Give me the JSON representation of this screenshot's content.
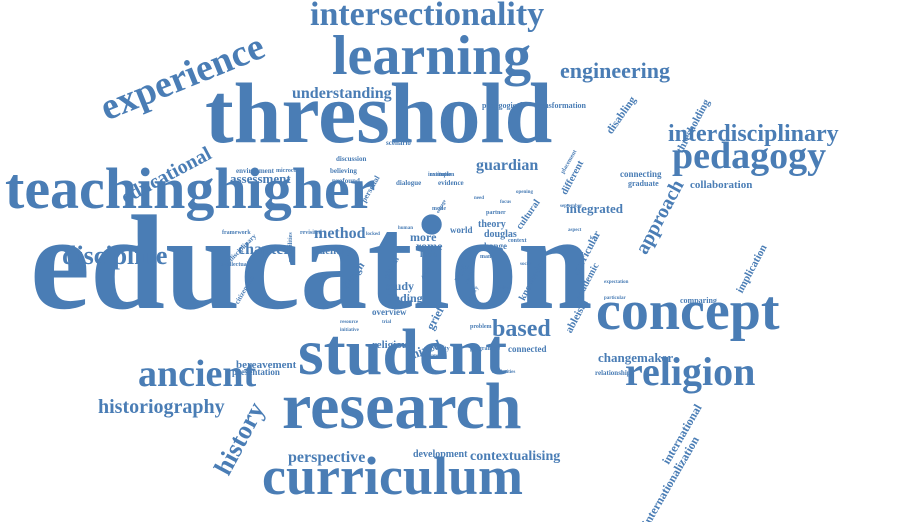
{
  "color": "#4a7db5",
  "words": [
    {
      "text": "education",
      "size": 135
    },
    {
      "text": "threshold",
      "size": 86
    },
    {
      "text": "student",
      "size": 66
    },
    {
      "text": "research",
      "size": 66
    },
    {
      "text": "teachinghigher",
      "size": 58
    },
    {
      "text": "concept",
      "size": 56
    },
    {
      "text": "learning",
      "size": 56
    },
    {
      "text": "curriculum",
      "size": 54
    },
    {
      "text": "religion",
      "size": 40
    },
    {
      "text": "pedagogy",
      "size": 38
    },
    {
      "text": "ancient",
      "size": 38
    },
    {
      "text": "experience",
      "size": 38
    },
    {
      "text": "intersectionality",
      "size": 34
    },
    {
      "text": "discipline",
      "size": 26
    },
    {
      "text": "interdisciplinary",
      "size": 24
    },
    {
      "text": "engineering",
      "size": 22
    },
    {
      "text": "historiography",
      "size": 20
    },
    {
      "text": "history",
      "size": 26
    },
    {
      "text": "based",
      "size": 24
    },
    {
      "text": "educational",
      "size": 20
    },
    {
      "text": "approach",
      "size": 20
    },
    {
      "text": "understanding",
      "size": 16
    },
    {
      "text": "guardian",
      "size": 16
    },
    {
      "text": "perspective",
      "size": 16
    },
    {
      "text": "chapter",
      "size": 16
    },
    {
      "text": "method",
      "size": 16
    },
    {
      "text": "contextualising",
      "size": 14
    },
    {
      "text": "assessment",
      "size": 13
    },
    {
      "text": "integrated",
      "size": 13
    },
    {
      "text": "changemaker",
      "size": 13
    },
    {
      "text": "collaboration",
      "size": 11
    },
    {
      "text": "international",
      "size": 12
    },
    {
      "text": "internationalization",
      "size": 12
    },
    {
      "text": "thresholding",
      "size": 11
    },
    {
      "text": "disabling",
      "size": 11
    },
    {
      "text": "implication",
      "size": 11
    },
    {
      "text": "curricular",
      "size": 11
    },
    {
      "text": "cultural",
      "size": 10
    },
    {
      "text": "different",
      "size": 10
    },
    {
      "text": "academic",
      "size": 10
    },
    {
      "text": "knowledge",
      "size": 10
    },
    {
      "text": "mixed",
      "size": 13
    },
    {
      "text": "religious",
      "size": 11
    },
    {
      "text": "bereavement",
      "size": 11
    },
    {
      "text": "presentation",
      "size": 9
    },
    {
      "text": "development",
      "size": 10
    },
    {
      "text": "identity",
      "size": 11
    },
    {
      "text": "design",
      "size": 11
    },
    {
      "text": "study",
      "size": 12
    },
    {
      "text": "finding",
      "size": 12
    },
    {
      "text": "grief",
      "size": 12
    },
    {
      "text": "rome",
      "size": 12
    },
    {
      "text": "more",
      "size": 12
    },
    {
      "text": "theory",
      "size": 10
    },
    {
      "text": "douglas",
      "size": 10
    },
    {
      "text": "change",
      "size": 9
    },
    {
      "text": "world",
      "size": 9
    },
    {
      "text": "latin",
      "size": 9
    },
    {
      "text": "global",
      "size": 9
    },
    {
      "text": "work",
      "size": 9
    },
    {
      "text": "ableism",
      "size": 11
    },
    {
      "text": "connected",
      "size": 9
    },
    {
      "text": "overview",
      "size": 9
    },
    {
      "text": "connecting",
      "size": 9
    },
    {
      "text": "graduate",
      "size": 8
    },
    {
      "text": "comparing",
      "size": 8
    },
    {
      "text": "relationship",
      "size": 7
    },
    {
      "text": "pedagogical",
      "size": 8
    },
    {
      "text": "transformation",
      "size": 8
    },
    {
      "text": "discussion",
      "size": 7
    },
    {
      "text": "scenario",
      "size": 7
    },
    {
      "text": "environment",
      "size": 7
    },
    {
      "text": "microcosm",
      "size": 6
    },
    {
      "text": "believing",
      "size": 7
    },
    {
      "text": "profound",
      "size": 7
    },
    {
      "text": "dialogue",
      "size": 7
    },
    {
      "text": "evidence",
      "size": 7
    },
    {
      "text": "personal",
      "size": 8
    },
    {
      "text": "framework",
      "size": 6
    },
    {
      "text": "disciplinary",
      "size": 7
    },
    {
      "text": "intellectual",
      "size": 6
    },
    {
      "text": "citizenship",
      "size": 7
    },
    {
      "text": "possibilities",
      "size": 6
    },
    {
      "text": "revisited",
      "size": 6
    },
    {
      "text": "institution",
      "size": 6
    },
    {
      "text": "example",
      "size": 6
    },
    {
      "text": "placement",
      "size": 6
    },
    {
      "text": "partner",
      "size": 6
    },
    {
      "text": "many",
      "size": 6
    },
    {
      "text": "mode",
      "size": 6
    },
    {
      "text": "context",
      "size": 6
    },
    {
      "text": "september",
      "size": 5
    },
    {
      "text": "expectation",
      "size": 5
    },
    {
      "text": "particular",
      "size": 5
    },
    {
      "text": "problem",
      "size": 6
    },
    {
      "text": "university",
      "size": 6
    },
    {
      "text": "separate",
      "size": 5
    },
    {
      "text": "programme",
      "size": 6
    },
    {
      "text": "solidarities",
      "size": 5
    },
    {
      "text": "resource",
      "size": 5
    },
    {
      "text": "initiative",
      "size": 5
    },
    {
      "text": "inquiry",
      "size": 6
    },
    {
      "text": "range",
      "size": 6
    },
    {
      "text": "device",
      "size": 5
    },
    {
      "text": "locked",
      "size": 5
    },
    {
      "text": "engage",
      "size": 5
    },
    {
      "text": "human",
      "size": 5
    },
    {
      "text": "focus",
      "size": 5
    },
    {
      "text": "social",
      "size": 5
    },
    {
      "text": "online",
      "size": 5
    },
    {
      "text": "opening",
      "size": 5
    },
    {
      "text": "aspect",
      "size": 5
    },
    {
      "text": "key",
      "size": 5
    },
    {
      "text": "trial",
      "size": 5
    },
    {
      "text": "need",
      "size": 5
    }
  ]
}
